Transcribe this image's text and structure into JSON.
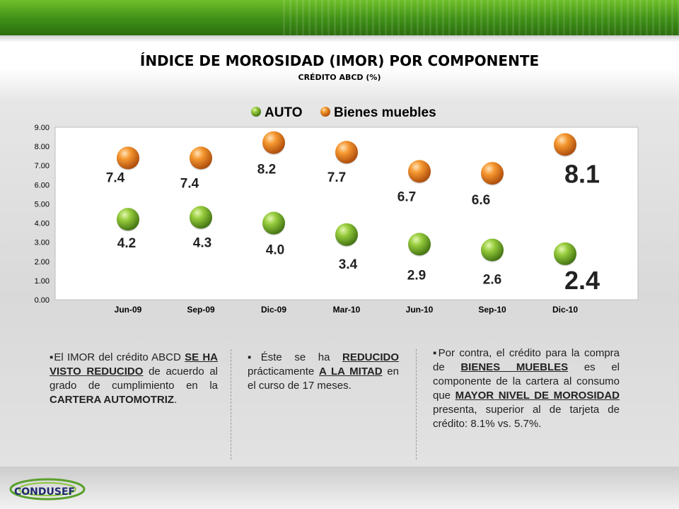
{
  "title": "ÍNDICE DE MOROSIDAD (IMOR) POR COMPONENTE",
  "subtitle": "CRÉDITO ABCD (%)",
  "colors": {
    "auto": "#6aa321",
    "bienes": "#e8751a",
    "banner": "#4a9a1d"
  },
  "chart_data": {
    "type": "scatter",
    "categories": [
      "Jun-09",
      "Sep-09",
      "Dic-09",
      "Mar-10",
      "Jun-10",
      "Sep-10",
      "Dic-10"
    ],
    "y_ticks": [
      "0.00",
      "1.00",
      "2.00",
      "3.00",
      "4.00",
      "5.00",
      "6.00",
      "7.00",
      "8.00",
      "9.00"
    ],
    "ylim": [
      0,
      9
    ],
    "legend_position": "top",
    "grid": false,
    "series": [
      {
        "name": "AUTO",
        "values": [
          4.2,
          4.3,
          4.0,
          3.4,
          2.9,
          2.6,
          2.4
        ],
        "labels": [
          "4.2",
          "4.3",
          "4.0",
          "3.4",
          "2.9",
          "2.6",
          "2.4"
        ]
      },
      {
        "name": "Bienes muebles",
        "values": [
          7.4,
          7.4,
          8.2,
          7.7,
          6.7,
          6.6,
          8.1
        ],
        "labels": [
          "7.4",
          "7.4",
          "8.2",
          "7.7",
          "6.7",
          "6.6",
          "8.1"
        ]
      }
    ]
  },
  "bullets": {
    "col1": {
      "p1": "El IMOR  del crédito ABCD ",
      "u1": "SE HA VISTO REDUCIDO",
      "p2": " de acuerdo al grado de cumplimiento en la ",
      "b1": "CARTERA AUTOMOTRIZ",
      "p3": "."
    },
    "col2": {
      "p1": "Éste se ha ",
      "u1": "REDUCIDO",
      "p2": " prácticamente ",
      "u2": "A LA MITAD",
      "p3": " en el curso de 17 meses."
    },
    "col3": {
      "p1": "Por contra, el crédito para la compra de ",
      "u1": "BIENES MUEBLES",
      "p2": " es el componente de la cartera al consumo que ",
      "u2": "MAYOR NIVEL DE MOROSIDAD",
      "p3": " presenta, superior al de tarjeta de crédito: 8.1%  vs. 5.7%."
    }
  },
  "logo": {
    "text": "CONDUSEF"
  }
}
